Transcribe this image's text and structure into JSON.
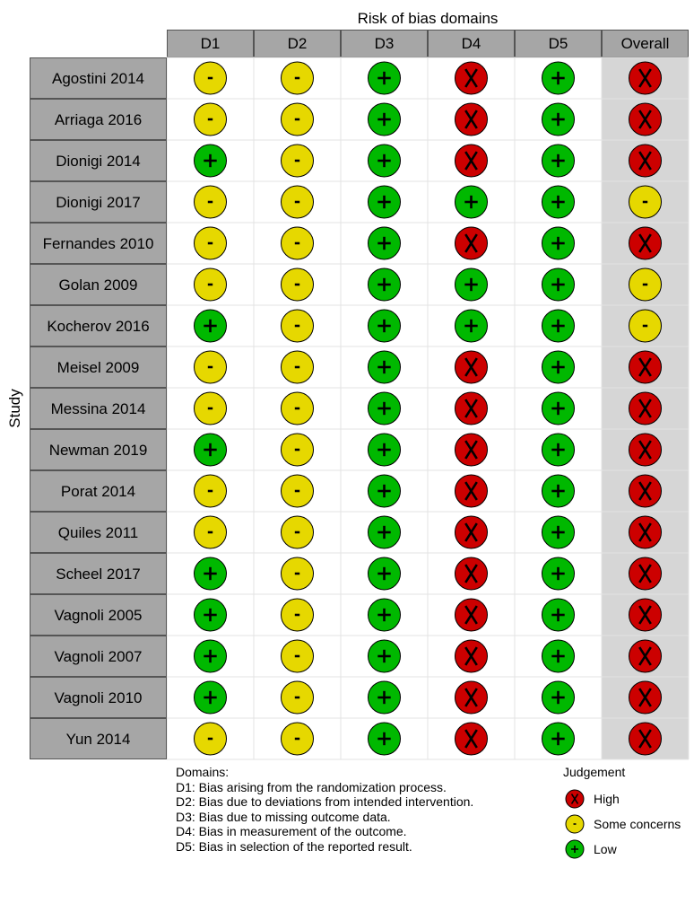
{
  "chart_data": {
    "type": "table",
    "title": "Risk of bias domains",
    "ylabel": "Study",
    "columns": [
      "D1",
      "D2",
      "D3",
      "D4",
      "D5",
      "Overall"
    ],
    "studies": [
      {
        "name": "Agostini 2014",
        "judgements": [
          "some",
          "some",
          "low",
          "high",
          "low",
          "high"
        ]
      },
      {
        "name": "Arriaga 2016",
        "judgements": [
          "some",
          "some",
          "low",
          "high",
          "low",
          "high"
        ]
      },
      {
        "name": "Dionigi 2014",
        "judgements": [
          "low",
          "some",
          "low",
          "high",
          "low",
          "high"
        ]
      },
      {
        "name": "Dionigi 2017",
        "judgements": [
          "some",
          "some",
          "low",
          "low",
          "low",
          "some"
        ]
      },
      {
        "name": "Fernandes 2010",
        "judgements": [
          "some",
          "some",
          "low",
          "high",
          "low",
          "high"
        ]
      },
      {
        "name": "Golan 2009",
        "judgements": [
          "some",
          "some",
          "low",
          "low",
          "low",
          "some"
        ]
      },
      {
        "name": "Kocherov 2016",
        "judgements": [
          "low",
          "some",
          "low",
          "low",
          "low",
          "some"
        ]
      },
      {
        "name": "Meisel 2009",
        "judgements": [
          "some",
          "some",
          "low",
          "high",
          "low",
          "high"
        ]
      },
      {
        "name": "Messina 2014",
        "judgements": [
          "some",
          "some",
          "low",
          "high",
          "low",
          "high"
        ]
      },
      {
        "name": "Newman 2019",
        "judgements": [
          "low",
          "some",
          "low",
          "high",
          "low",
          "high"
        ]
      },
      {
        "name": "Porat 2014",
        "judgements": [
          "some",
          "some",
          "low",
          "high",
          "low",
          "high"
        ]
      },
      {
        "name": "Quiles 2011",
        "judgements": [
          "some",
          "some",
          "low",
          "high",
          "low",
          "high"
        ]
      },
      {
        "name": "Scheel 2017",
        "judgements": [
          "low",
          "some",
          "low",
          "high",
          "low",
          "high"
        ]
      },
      {
        "name": "Vagnoli 2005",
        "judgements": [
          "low",
          "some",
          "low",
          "high",
          "low",
          "high"
        ]
      },
      {
        "name": "Vagnoli 2007",
        "judgements": [
          "low",
          "some",
          "low",
          "high",
          "low",
          "high"
        ]
      },
      {
        "name": "Vagnoli 2010",
        "judgements": [
          "low",
          "some",
          "low",
          "high",
          "low",
          "high"
        ]
      },
      {
        "name": "Yun 2014",
        "judgements": [
          "some",
          "some",
          "low",
          "high",
          "low",
          "high"
        ]
      }
    ],
    "judgement_levels": {
      "high": {
        "label": "High",
        "symbol": "X",
        "color": "#cc0000"
      },
      "some": {
        "label": "Some concerns",
        "symbol": "-",
        "color": "#e6d800"
      },
      "low": {
        "label": "Low",
        "symbol": "+",
        "color": "#00b800"
      }
    }
  },
  "domains_legend": {
    "heading": "Domains:",
    "items": [
      "D1: Bias arising from the randomization process.",
      "D2: Bias due to deviations from intended intervention.",
      "D3: Bias due to missing outcome data.",
      "D4: Bias in measurement of the outcome.",
      "D5: Bias in selection of the reported result."
    ]
  },
  "judgement_legend": {
    "title": "Judgement",
    "items": [
      {
        "key": "high",
        "label": "High"
      },
      {
        "key": "some",
        "label": "Some concerns"
      },
      {
        "key": "low",
        "label": "Low"
      }
    ]
  },
  "colors": {
    "header_fill": "#a6a6a6",
    "row_label_fill": "#a6a6a6",
    "overall_column_fill": "#d6d6d6"
  }
}
